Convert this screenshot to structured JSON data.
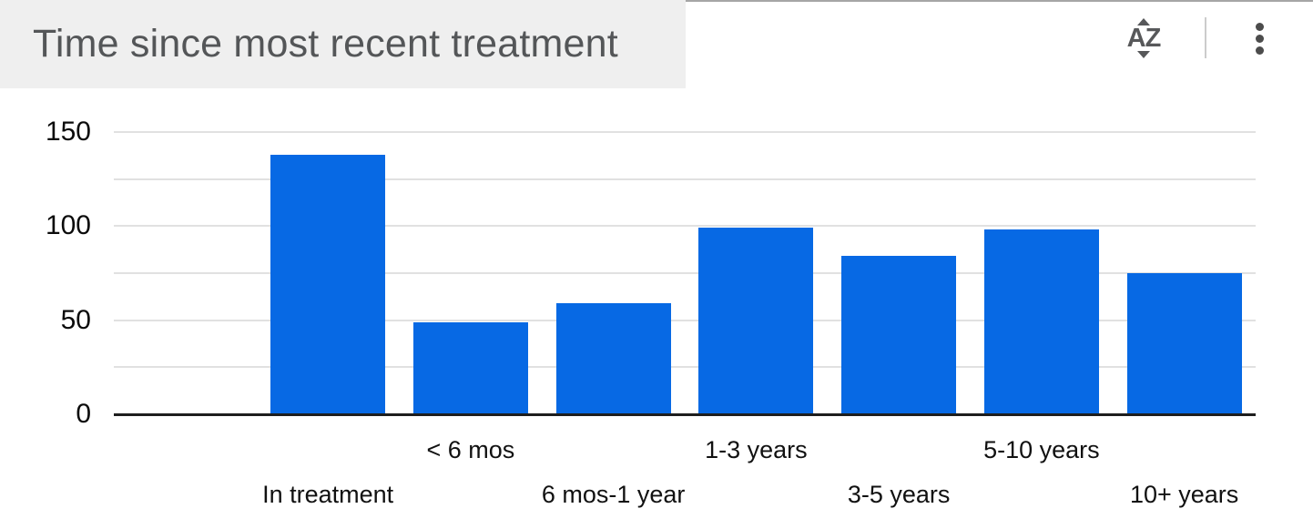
{
  "widget": {
    "title": "Time since most recent treatment",
    "toolbar": {
      "sort_label": "AZ"
    }
  },
  "chart_data": {
    "type": "bar",
    "title": "Time since most recent treatment",
    "categories": [
      "In treatment",
      "< 6 mos",
      "6 mos-1 year",
      "1-3 years",
      "3-5 years",
      "5-10 years",
      "10+ years"
    ],
    "values": [
      138,
      49,
      59,
      99,
      84,
      98,
      75
    ],
    "xlabel": "",
    "ylabel": "",
    "ylim": [
      0,
      150
    ],
    "yticks_labeled": [
      0,
      50,
      100,
      150
    ],
    "gridline_interval": 25,
    "bar_color": "#0769e4",
    "grid": true,
    "legend_position": "none",
    "x_label_layout": "staggered-two-rows"
  }
}
